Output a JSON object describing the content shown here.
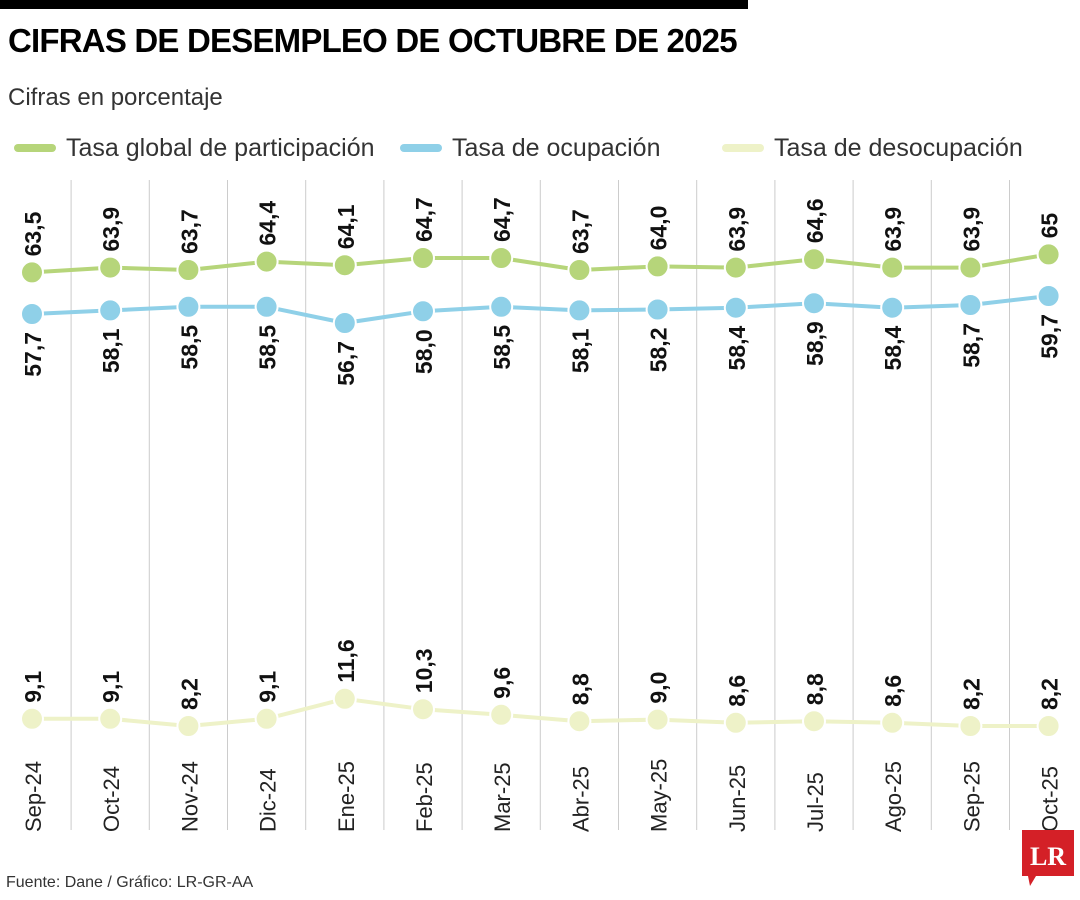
{
  "title": "CIFRAS DE DESEMPLEO DE OCTUBRE DE 2025",
  "subtitle": "Cifras en porcentaje",
  "source": "Fuente: Dane / Gráfico: LR-GR-AA",
  "logo_text": "LR",
  "colors": {
    "global": "#b6d57a",
    "ocupacion": "#8fd0e8",
    "desocupacion": "#eef2c8",
    "gridline": "#cccccc",
    "logo": "#d42027"
  },
  "legend": [
    {
      "key": "global",
      "label": "Tasa global de participación"
    },
    {
      "key": "ocupacion",
      "label": "Tasa de ocupación"
    },
    {
      "key": "desocupacion",
      "label": "Tasa de desocupación"
    }
  ],
  "chart_data": {
    "type": "line",
    "categories": [
      "Sep-24",
      "Oct-24",
      "Nov-24",
      "Dic-24",
      "Ene-25",
      "Feb-25",
      "Mar-25",
      "Abr-25",
      "May-25",
      "Jun-25",
      "Jul-25",
      "Ago-25",
      "Sep-25",
      "Oct-25"
    ],
    "series": [
      {
        "key": "global",
        "name": "Tasa global de participación",
        "values": [
          63.5,
          63.9,
          63.7,
          64.4,
          64.1,
          64.7,
          64.7,
          63.7,
          64.0,
          63.9,
          64.6,
          63.9,
          63.9,
          65
        ],
        "labels": [
          "63,5",
          "63,9",
          "63,7",
          "64,4",
          "64,1",
          "64,7",
          "64,7",
          "63,7",
          "64,0",
          "63,9",
          "64,6",
          "63,9",
          "63,9",
          "65"
        ]
      },
      {
        "key": "ocupacion",
        "name": "Tasa de ocupación",
        "values": [
          57.7,
          58.1,
          58.5,
          58.5,
          56.7,
          58.0,
          58.5,
          58.1,
          58.2,
          58.4,
          58.9,
          58.4,
          58.7,
          59.7
        ],
        "labels": [
          "57,7",
          "58,1",
          "58,5",
          "58,5",
          "56,7",
          "58,0",
          "58,5",
          "58,1",
          "58,2",
          "58,4",
          "58,9",
          "58,4",
          "58,7",
          "59,7"
        ]
      },
      {
        "key": "desocupacion",
        "name": "Tasa de desocupación",
        "values": [
          9.1,
          9.1,
          8.2,
          9.1,
          11.6,
          10.3,
          9.6,
          8.8,
          9.0,
          8.6,
          8.8,
          8.6,
          8.2,
          8.2
        ],
        "labels": [
          "9,1",
          "9,1",
          "8,2",
          "9,1",
          "11,6",
          "10,3",
          "9,6",
          "8,8",
          "9,0",
          "8,6",
          "8,8",
          "8,6",
          "8,2",
          "8,2"
        ]
      }
    ],
    "grid": "vertical",
    "legend_position": "top"
  }
}
